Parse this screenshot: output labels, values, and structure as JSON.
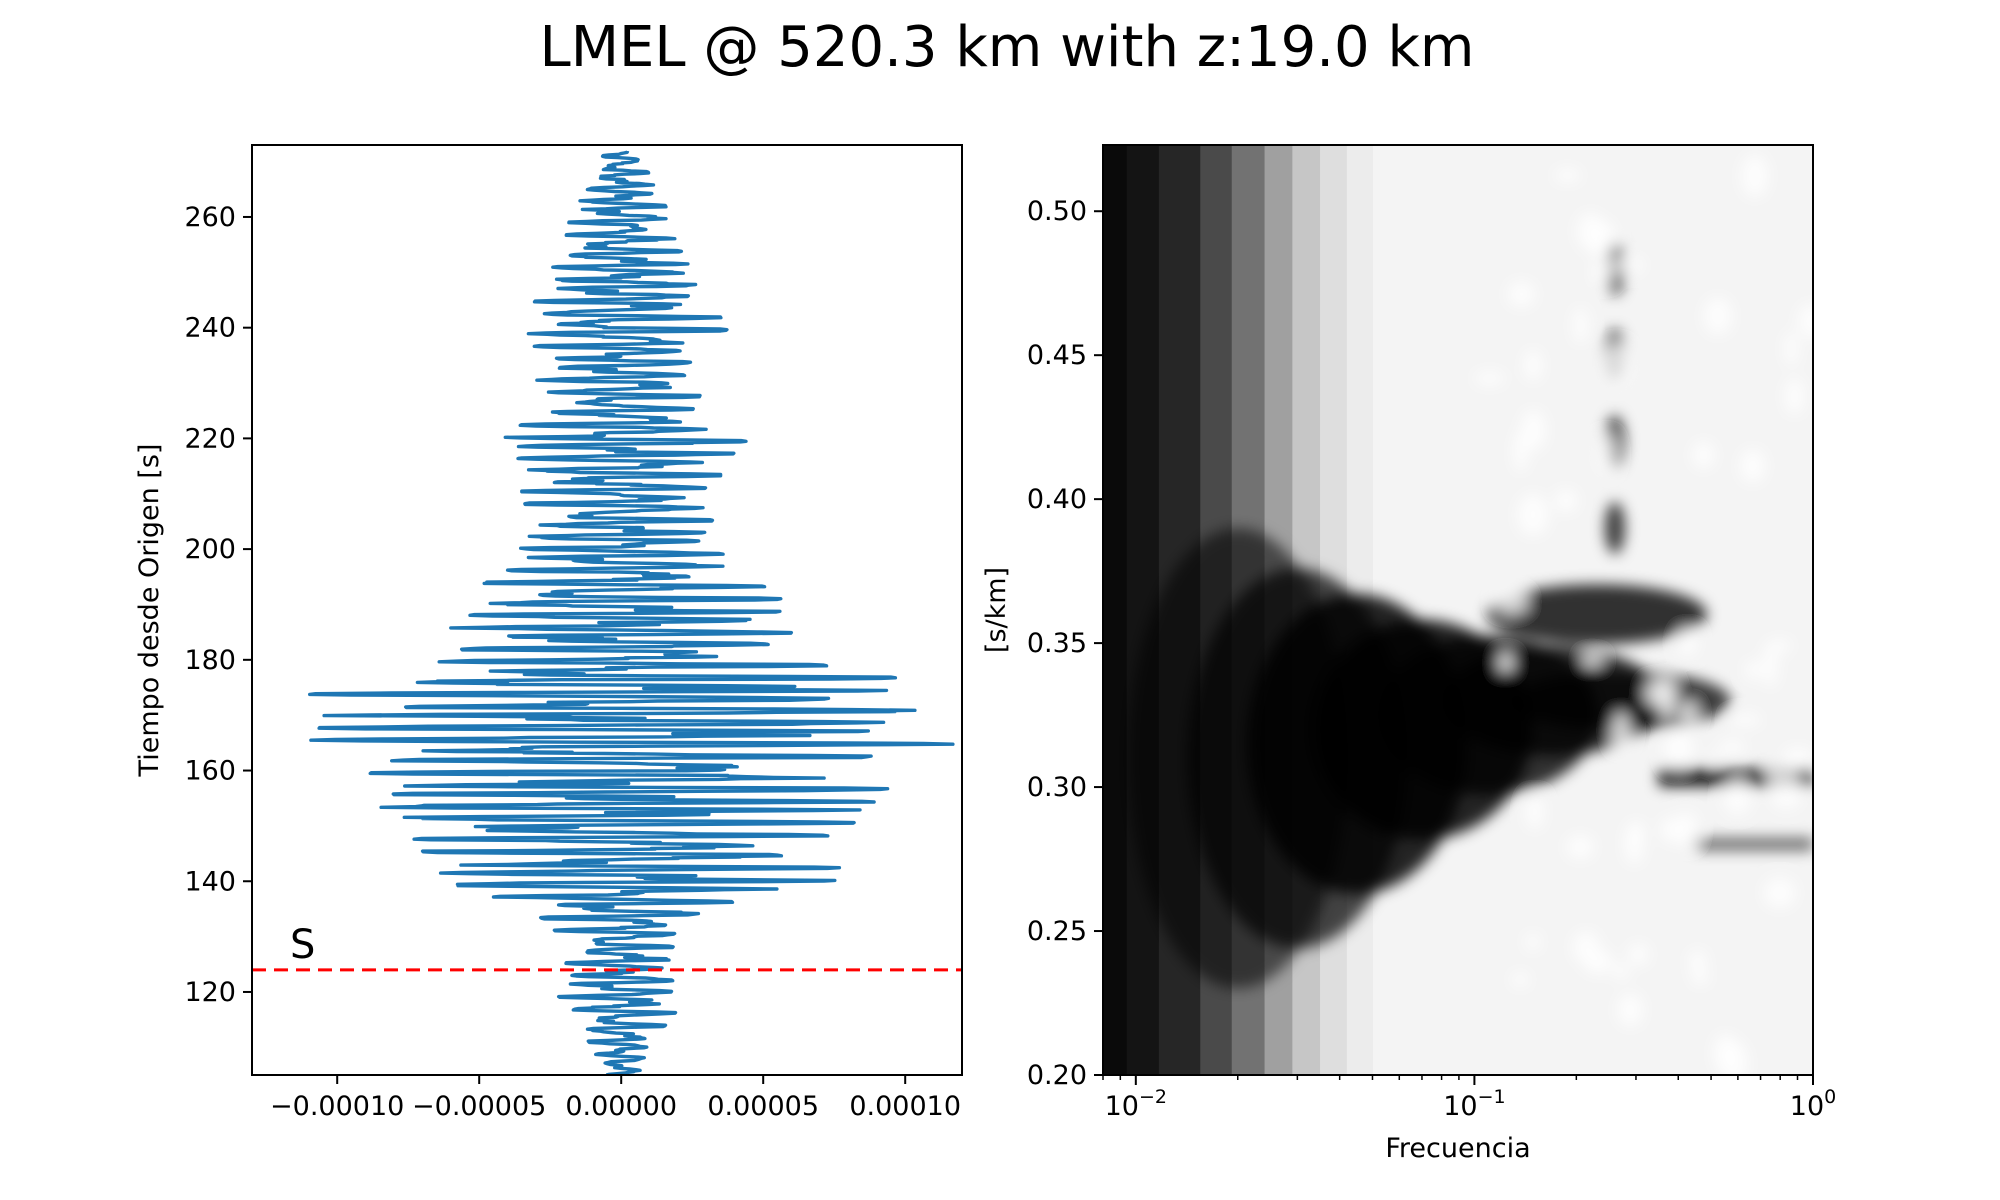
{
  "figure": {
    "title": "LMEL @ 520.3 km with z:19.0 km"
  },
  "chart_data": [
    {
      "type": "line",
      "name": "seismogram",
      "orientation": "vertical-time",
      "color": "#1f77b4",
      "xlim": [
        -0.00013,
        0.00012
      ],
      "ylim": [
        105,
        273
      ],
      "xticks": [
        -0.0001,
        -5e-05,
        0.0,
        5e-05,
        0.0001
      ],
      "xtick_labels": [
        "−0.00010",
        "−0.00005",
        "0.00000",
        "0.00005",
        "0.00010"
      ],
      "yticks": [
        120,
        140,
        160,
        180,
        200,
        220,
        240,
        260
      ],
      "ytick_labels": [
        "120",
        "140",
        "160",
        "180",
        "200",
        "220",
        "240",
        "260"
      ],
      "xlabel": "",
      "ylabel": "Tiempo desde Origen [s]",
      "envelope": {
        "time": [
          105,
          110,
          115,
          118,
          121,
          124,
          128,
          132,
          135,
          138,
          141,
          144,
          147,
          150,
          153,
          156,
          159,
          162,
          165,
          168,
          170,
          172,
          175,
          178,
          181,
          185,
          188,
          192,
          196,
          200,
          205,
          210,
          215,
          220,
          225,
          230,
          235,
          240,
          245,
          250,
          255,
          260,
          265,
          270,
          272
        ],
        "amplitude": [
          6e-06,
          1e-05,
          1.7e-05,
          2.2e-05,
          2.2e-05,
          2e-05,
          1.8e-05,
          2.5e-05,
          3.2e-05,
          5e-05,
          8.5e-05,
          6.8e-05,
          7.2e-05,
          8e-05,
          9e-05,
          9.5e-05,
          9e-05,
          8e-05,
          0.00012,
          0.000105,
          0.00011,
          9.5e-05,
          0.00012,
          8e-05,
          5.5e-05,
          6e-05,
          6e-05,
          5.5e-05,
          4e-05,
          4e-05,
          3.2e-05,
          3.5e-05,
          3.5e-05,
          4.5e-05,
          2.5e-05,
          3e-05,
          2.7e-05,
          3.8e-05,
          3e-05,
          2.5e-05,
          2e-05,
          1.8e-05,
          1.2e-05,
          8e-06,
          5e-06
        ]
      },
      "phase_marker": {
        "label": "S",
        "time": 124,
        "color": "#ff0000",
        "style": "dashed"
      }
    },
    {
      "type": "heatmap",
      "name": "slowness-frequency",
      "colormap": "gray (black = high power)",
      "xscale": "log",
      "xlim": [
        0.008,
        1.0
      ],
      "ylim": [
        0.2,
        0.523
      ],
      "xticks": [
        0.01,
        0.1,
        1.0
      ],
      "xtick_labels": [
        "10",
        "10",
        "10"
      ],
      "xtick_exponents": [
        "−2",
        "−1",
        "0"
      ],
      "yticks": [
        0.2,
        0.25,
        0.3,
        0.35,
        0.4,
        0.45,
        0.5
      ],
      "ytick_labels": [
        "0.20",
        "0.25",
        "0.30",
        "0.35",
        "0.40",
        "0.45",
        "0.50"
      ],
      "xlabel": "Frecuencia",
      "ylabel": "[s/km]",
      "power_ridge": {
        "slowness_center": 0.31,
        "frequency_range": [
          0.008,
          1.0
        ]
      }
    }
  ]
}
